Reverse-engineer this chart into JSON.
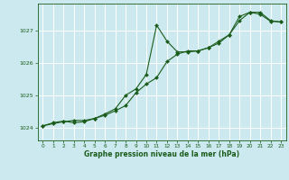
{
  "xlabel": "Graphe pression niveau de la mer (hPa)",
  "bg_color": "#cce9f0",
  "grid_color": "#ffffff",
  "line_color": "#1a5c1a",
  "xlim": [
    -0.5,
    23.5
  ],
  "ylim": [
    1023.6,
    1027.85
  ],
  "xticks": [
    0,
    1,
    2,
    3,
    4,
    5,
    6,
    7,
    8,
    9,
    10,
    11,
    12,
    13,
    14,
    15,
    16,
    17,
    18,
    19,
    20,
    21,
    22,
    23
  ],
  "yticks": [
    1024,
    1025,
    1026,
    1027
  ],
  "series1_x": [
    0,
    1,
    2,
    3,
    4,
    5,
    6,
    7,
    8,
    9,
    10,
    11,
    12,
    13,
    14,
    15,
    16,
    17,
    18,
    19,
    20,
    21,
    22,
    23
  ],
  "series1_y": [
    1024.05,
    1024.15,
    1024.2,
    1024.15,
    1024.18,
    1024.28,
    1024.42,
    1024.58,
    1025.0,
    1025.2,
    1025.65,
    1027.18,
    1026.68,
    1026.35,
    1026.35,
    1026.38,
    1026.48,
    1026.62,
    1026.88,
    1027.45,
    1027.58,
    1027.52,
    1027.3,
    1027.28
  ],
  "series2_x": [
    0,
    1,
    2,
    3,
    4,
    5,
    6,
    7,
    8,
    9,
    10,
    11,
    12,
    13,
    14,
    15,
    16,
    17,
    18,
    19,
    20,
    21,
    22,
    23
  ],
  "series2_y": [
    1024.05,
    1024.12,
    1024.18,
    1024.22,
    1024.22,
    1024.28,
    1024.38,
    1024.52,
    1024.68,
    1025.08,
    1025.35,
    1025.55,
    1026.05,
    1026.28,
    1026.38,
    1026.38,
    1026.48,
    1026.68,
    1026.88,
    1027.32,
    1027.58,
    1027.58,
    1027.32,
    1027.28
  ]
}
